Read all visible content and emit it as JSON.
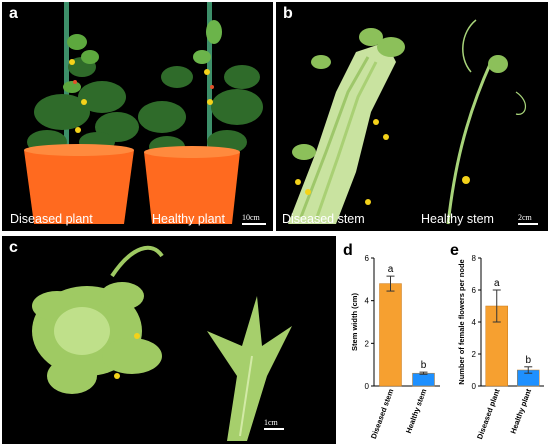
{
  "panels": {
    "a": {
      "label": "a",
      "captions": [
        "Diseased plant",
        "Healthy plant"
      ],
      "scalebar": "10cm"
    },
    "b": {
      "label": "b",
      "captions": [
        "Diseased stem",
        "Healthy stem"
      ],
      "scalebar": "2cm"
    },
    "c": {
      "label": "c",
      "scalebar": "1cm"
    },
    "d": {
      "label": "d"
    },
    "e": {
      "label": "e"
    }
  },
  "colors": {
    "diseased": "#f6a030",
    "healthy": "#1e90ff"
  },
  "chart_data": [
    {
      "type": "bar",
      "panel": "d",
      "categories": [
        "Diseased stem",
        "Healthy stem"
      ],
      "values": [
        4.8,
        0.6
      ],
      "errors": [
        0.35,
        0.05
      ],
      "significance": [
        "a",
        "b"
      ],
      "ylabel": "Stem width (cm)",
      "xlabel": "",
      "ylim": [
        0,
        6
      ],
      "yticks": [
        0,
        2,
        4,
        6
      ]
    },
    {
      "type": "bar",
      "panel": "e",
      "categories": [
        "Diseased plant",
        "Healthy plant"
      ],
      "values": [
        5.0,
        1.0
      ],
      "errors": [
        1.0,
        0.2
      ],
      "significance": [
        "a",
        "b"
      ],
      "ylabel": "Number of female flowers per node",
      "xlabel": "",
      "ylim": [
        0,
        8
      ],
      "yticks": [
        0,
        2,
        4,
        6,
        8
      ]
    }
  ]
}
